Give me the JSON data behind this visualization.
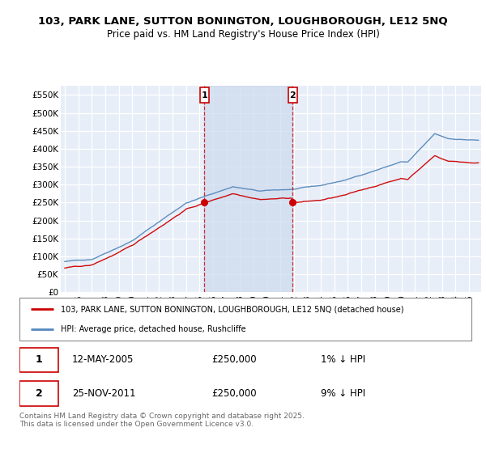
{
  "title1": "103, PARK LANE, SUTTON BONINGTON, LOUGHBOROUGH, LE12 5NQ",
  "title2": "Price paid vs. HM Land Registry's House Price Index (HPI)",
  "ylim": [
    0,
    575000
  ],
  "yticks": [
    0,
    50000,
    100000,
    150000,
    200000,
    250000,
    300000,
    350000,
    400000,
    450000,
    500000,
    550000
  ],
  "ytick_labels": [
    "£0",
    "£50K",
    "£100K",
    "£150K",
    "£200K",
    "£250K",
    "£300K",
    "£350K",
    "£400K",
    "£450K",
    "£500K",
    "£550K"
  ],
  "hpi_color": "#5588bb",
  "price_color": "#cc0000",
  "marker1_date": 2005.37,
  "marker2_date": 2011.9,
  "marker1_price": 250000,
  "marker2_price": 250000,
  "marker1_text": "12-MAY-2005",
  "marker1_val": "£250,000",
  "marker1_hpi": "1% ↓ HPI",
  "marker2_text": "25-NOV-2011",
  "marker2_val": "£250,000",
  "marker2_hpi": "9% ↓ HPI",
  "legend_line1": "103, PARK LANE, SUTTON BONINGTON, LOUGHBOROUGH, LE12 5NQ (detached house)",
  "legend_line2": "HPI: Average price, detached house, Rushcliffe",
  "footer": "Contains HM Land Registry data © Crown copyright and database right 2025.\nThis data is licensed under the Open Government Licence v3.0.",
  "bg_color": "#ffffff",
  "plot_bg": "#e8eef8",
  "grid_color": "#ffffff",
  "shade_color": "#ccd9ee"
}
